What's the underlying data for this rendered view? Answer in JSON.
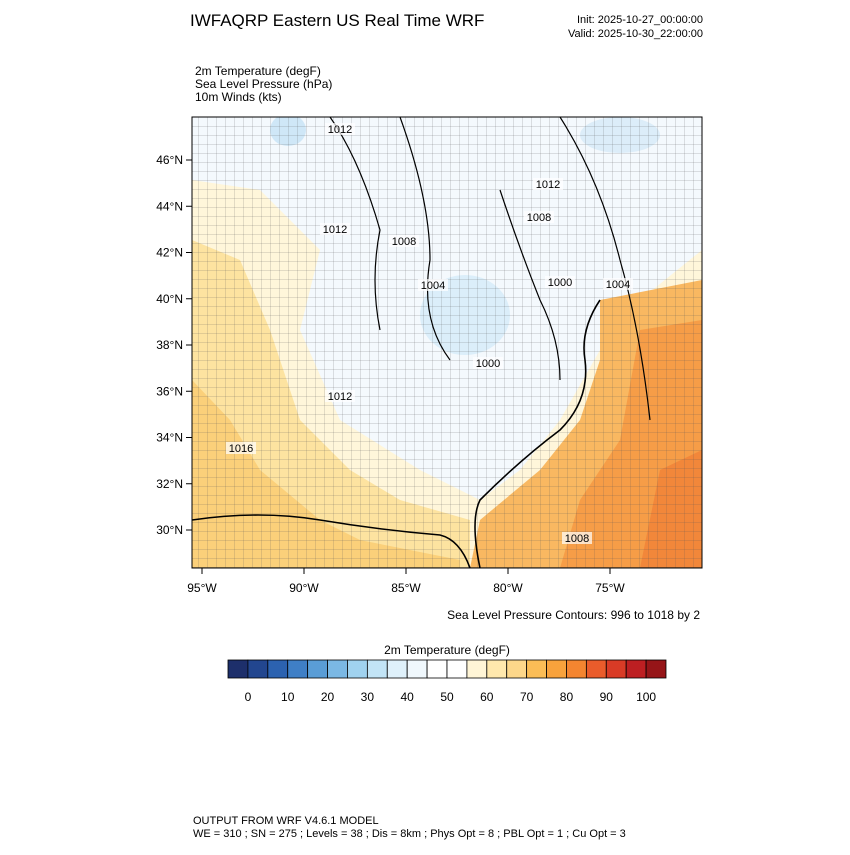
{
  "header": {
    "title": "IWFAQRP Eastern US Real Time WRF",
    "init": "Init: 2025-10-27_00:00:00",
    "valid": "Valid: 2025-10-30_22:00:00"
  },
  "fields": [
    "2m Temperature   (degF)",
    "Sea Level Pressure   (hPa)",
    "10m Winds   (kts)"
  ],
  "map": {
    "lat_labels": [
      "46°N",
      "44°N",
      "42°N",
      "40°N",
      "38°N",
      "36°N",
      "34°N",
      "32°N",
      "30°N"
    ],
    "lon_labels": [
      "95°W",
      "90°W",
      "85°W",
      "80°W",
      "75°W"
    ],
    "contour_labels": [
      "1012",
      "1012",
      "1008",
      "1004",
      "1000",
      "1012",
      "1016",
      "1012",
      "1008",
      "1000",
      "1004",
      "1008"
    ],
    "contour_note": "Sea Level Pressure Contours: 996 to 1018 by 2"
  },
  "colorbar": {
    "title": "2m Temperature  (degF)",
    "colors": [
      "#1d2f6b",
      "#22468f",
      "#2c62b0",
      "#3f7fc6",
      "#5a9dd6",
      "#7bb8e4",
      "#a0d2ef",
      "#c2e4f6",
      "#dff1fb",
      "#f0f8fd",
      "#ffffff",
      "#ffffff",
      "#fff5d6",
      "#ffe8ad",
      "#fdd78a",
      "#fbbd56",
      "#f8a23c",
      "#f48530",
      "#ea5c2b",
      "#d93b26",
      "#bd1f22",
      "#961518"
    ],
    "labels": [
      0,
      10,
      20,
      30,
      40,
      50,
      60,
      70,
      80,
      90,
      100
    ]
  },
  "footer": [
    "OUTPUT FROM WRF V4.6.1 MODEL",
    "WE = 310 ; SN = 275 ; Levels = 38 ; Dis = 8km ; Phys Opt = 8 ; PBL Opt = 1 ; Cu Opt = 3"
  ]
}
